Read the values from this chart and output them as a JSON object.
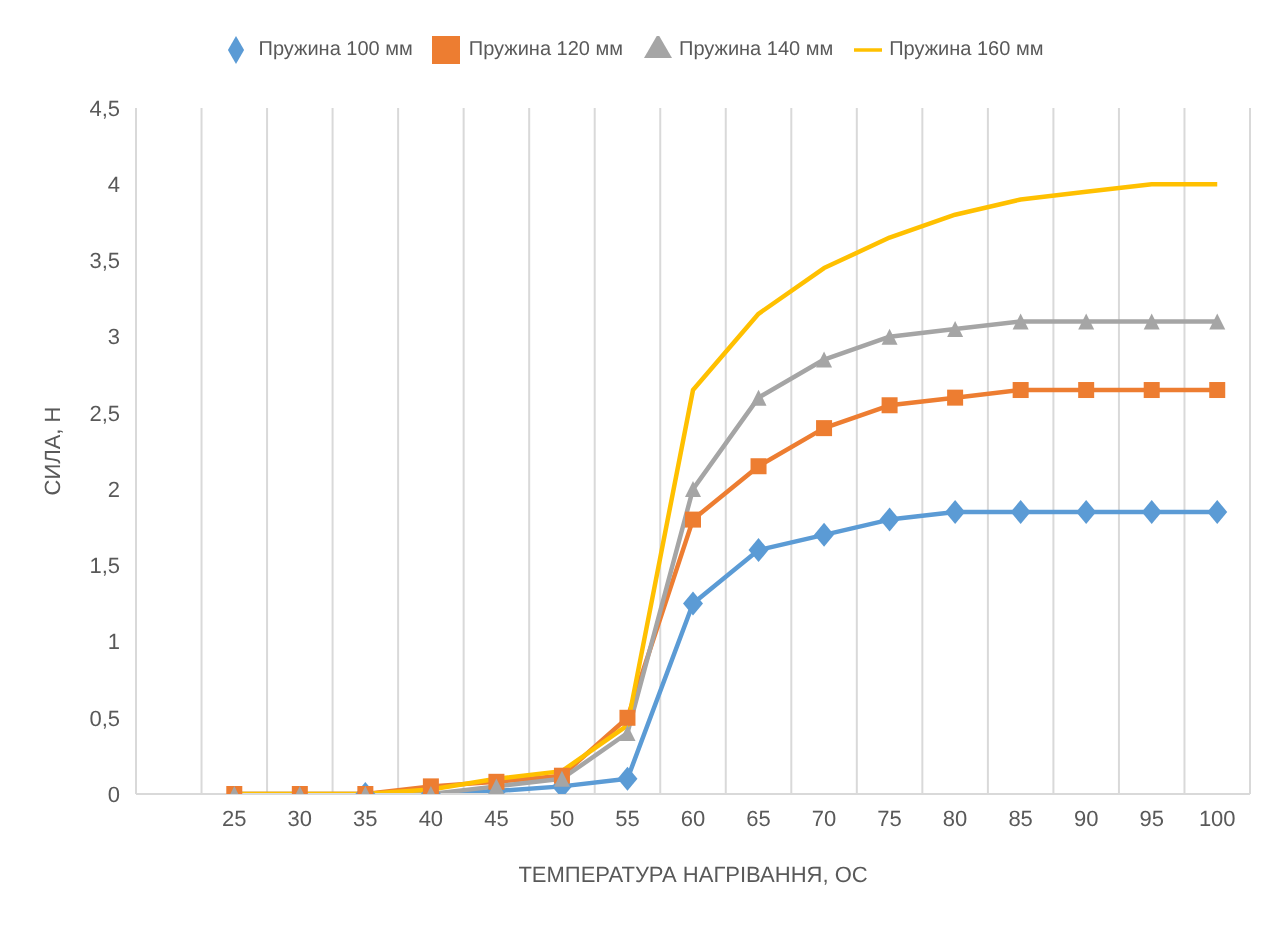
{
  "chart_data": {
    "type": "line",
    "xlabel": "ТЕМПЕРАТУРА НАГРІВАННЯ, ОС",
    "ylabel": "СИЛА, Н",
    "categories": [
      null,
      "25",
      "30",
      "35",
      "40",
      "45",
      "50",
      "55",
      "60",
      "65",
      "70",
      "75",
      "80",
      "85",
      "90",
      "95",
      "100"
    ],
    "series": [
      {
        "name": "Пружина 100 мм",
        "color": "#5b9bd5",
        "marker": "diamond",
        "values": [
          null,
          null,
          null,
          0,
          0,
          0.02,
          0.05,
          0.1,
          1.25,
          1.6,
          1.7,
          1.8,
          1.85,
          1.85,
          1.85,
          1.85,
          1.85
        ]
      },
      {
        "name": "Пружина 120 мм",
        "color": "#ed7d31",
        "marker": "square",
        "values": [
          null,
          0,
          0,
          0,
          0.05,
          0.08,
          0.12,
          0.5,
          1.8,
          2.15,
          2.4,
          2.55,
          2.6,
          2.65,
          2.65,
          2.65,
          2.65
        ]
      },
      {
        "name": "Пружина 140 мм",
        "color": "#a5a5a5",
        "marker": "triangle",
        "values": [
          null,
          0,
          0,
          0,
          0,
          0.05,
          0.1,
          0.4,
          2.0,
          2.6,
          2.85,
          3.0,
          3.05,
          3.1,
          3.1,
          3.1,
          3.1
        ]
      },
      {
        "name": "Пружина 160 мм",
        "color": "#ffc000",
        "marker": "none",
        "values": [
          null,
          0,
          0,
          0,
          0.03,
          0.1,
          0.15,
          0.45,
          2.65,
          3.15,
          3.45,
          3.65,
          3.8,
          3.9,
          3.95,
          4.0,
          4.0
        ]
      }
    ],
    "ylim": [
      0,
      4.5
    ],
    "yticks": [
      0,
      {
        "value": 0.5,
        "label": "0,5"
      },
      1,
      {
        "value": 1.5,
        "label": "1,5"
      },
      2,
      {
        "value": 2.5,
        "label": "2,5"
      },
      3,
      {
        "value": 3.5,
        "label": "3,5"
      },
      4,
      {
        "value": 4.5,
        "label": "4,5"
      }
    ],
    "grid": "x",
    "legend": "top"
  }
}
